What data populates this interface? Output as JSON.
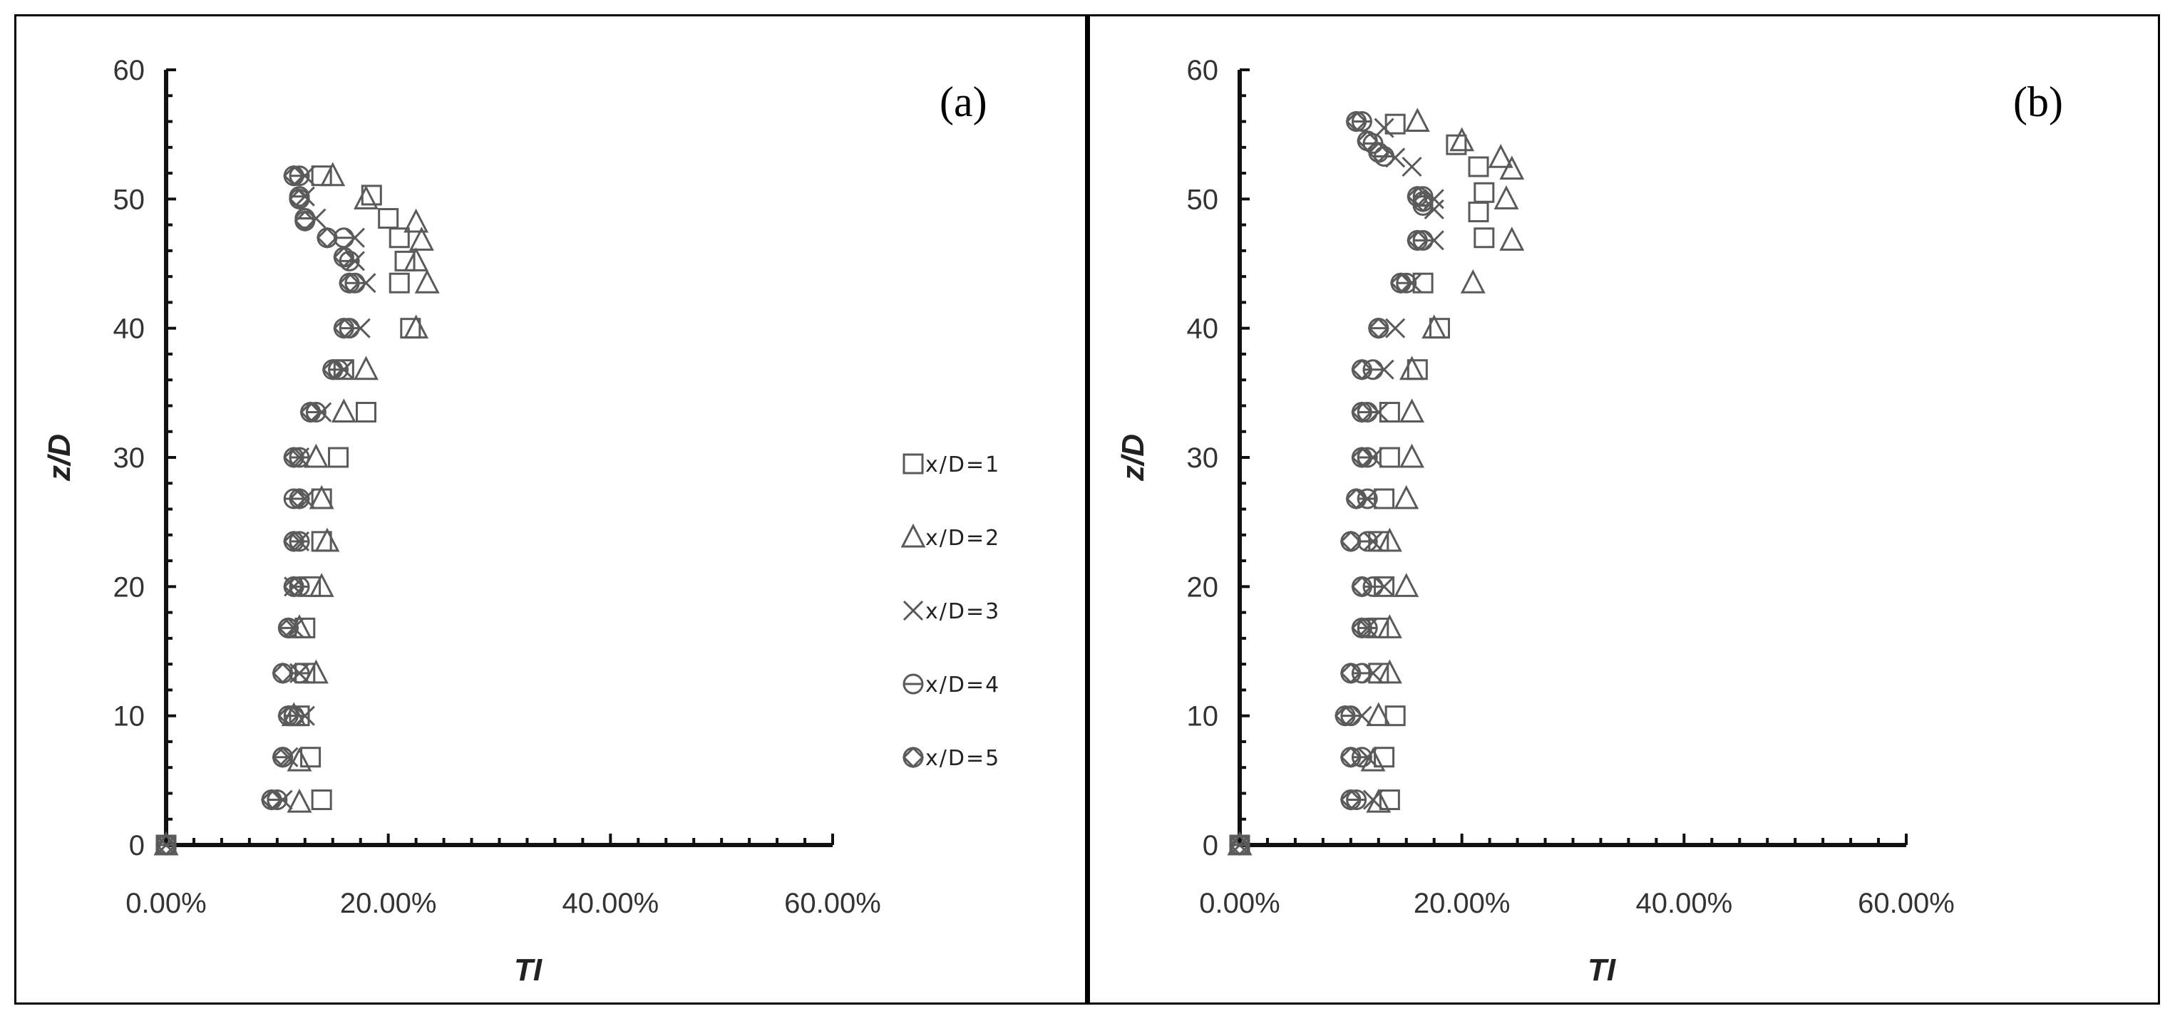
{
  "chart_data": [
    {
      "type": "scatter",
      "panel_label": "(a)",
      "xlabel": "TI",
      "ylabel": "z/D",
      "xlim": [
        0,
        0.6
      ],
      "ylim": [
        0,
        60
      ],
      "x_tick_labels": [
        "0.00%",
        "20.00%",
        "40.00%",
        "60.00%"
      ],
      "x_tick_values": [
        0,
        0.2,
        0.4,
        0.6
      ],
      "y_tick_labels": [
        "0",
        "10",
        "20",
        "30",
        "40",
        "50",
        "60"
      ],
      "y_tick_values": [
        0,
        10,
        20,
        30,
        40,
        50,
        60
      ],
      "legend_position": "right",
      "series": [
        {
          "name": "x/D=1",
          "marker": "square",
          "points": [
            [
              0,
              0
            ],
            [
              0.14,
              3.5
            ],
            [
              0.13,
              6.8
            ],
            [
              0.12,
              10
            ],
            [
              0.125,
              13.3
            ],
            [
              0.125,
              16.8
            ],
            [
              0.13,
              20
            ],
            [
              0.14,
              23.5
            ],
            [
              0.14,
              26.8
            ],
            [
              0.155,
              30
            ],
            [
              0.18,
              33.5
            ],
            [
              0.16,
              36.8
            ],
            [
              0.22,
              40
            ],
            [
              0.21,
              43.5
            ],
            [
              0.215,
              45.2
            ],
            [
              0.21,
              47
            ],
            [
              0.2,
              48.5
            ],
            [
              0.185,
              50.3
            ],
            [
              0.14,
              51.8
            ]
          ]
        },
        {
          "name": "x/D=2",
          "marker": "triangle",
          "points": [
            [
              0,
              0
            ],
            [
              0.12,
              3.3
            ],
            [
              0.12,
              6.5
            ],
            [
              0.115,
              10
            ],
            [
              0.135,
              13.3
            ],
            [
              0.12,
              16.8
            ],
            [
              0.14,
              20
            ],
            [
              0.145,
              23.5
            ],
            [
              0.14,
              26.8
            ],
            [
              0.135,
              30
            ],
            [
              0.16,
              33.5
            ],
            [
              0.18,
              36.8
            ],
            [
              0.225,
              40
            ],
            [
              0.235,
              43.5
            ],
            [
              0.225,
              45.2
            ],
            [
              0.23,
              46.8
            ],
            [
              0.225,
              48.2
            ],
            [
              0.18,
              50
            ],
            [
              0.15,
              51.8
            ]
          ]
        },
        {
          "name": "x/D=3",
          "marker": "x",
          "points": [
            [
              0,
              0
            ],
            [
              0.105,
              3.5
            ],
            [
              0.11,
              6.8
            ],
            [
              0.125,
              10
            ],
            [
              0.12,
              13.3
            ],
            [
              0.115,
              16.8
            ],
            [
              0.115,
              20
            ],
            [
              0.12,
              23.5
            ],
            [
              0.125,
              26.8
            ],
            [
              0.12,
              30
            ],
            [
              0.14,
              33.5
            ],
            [
              0.16,
              36.8
            ],
            [
              0.175,
              40
            ],
            [
              0.18,
              43.5
            ],
            [
              0.17,
              45.2
            ],
            [
              0.17,
              47
            ],
            [
              0.135,
              48.5
            ],
            [
              0.125,
              50.2
            ],
            [
              0.125,
              51.8
            ]
          ]
        },
        {
          "name": "x/D=4",
          "marker": "circle-cross",
          "points": [
            [
              0,
              0
            ],
            [
              0.1,
              3.5
            ],
            [
              0.105,
              6.8
            ],
            [
              0.115,
              10
            ],
            [
              0.12,
              13.3
            ],
            [
              0.11,
              16.8
            ],
            [
              0.12,
              20
            ],
            [
              0.12,
              23.5
            ],
            [
              0.115,
              26.8
            ],
            [
              0.12,
              30
            ],
            [
              0.135,
              33.5
            ],
            [
              0.155,
              36.8
            ],
            [
              0.165,
              40
            ],
            [
              0.17,
              43.5
            ],
            [
              0.165,
              45.2
            ],
            [
              0.16,
              47
            ],
            [
              0.125,
              48.5
            ],
            [
              0.12,
              50.2
            ],
            [
              0.12,
              51.8
            ]
          ]
        },
        {
          "name": "x/D=5",
          "marker": "diamond-circle",
          "points": [
            [
              0,
              0
            ],
            [
              0.095,
              3.5
            ],
            [
              0.105,
              6.8
            ],
            [
              0.11,
              10
            ],
            [
              0.105,
              13.3
            ],
            [
              0.11,
              16.8
            ],
            [
              0.115,
              20
            ],
            [
              0.115,
              23.5
            ],
            [
              0.12,
              26.8
            ],
            [
              0.115,
              30
            ],
            [
              0.13,
              33.5
            ],
            [
              0.15,
              36.8
            ],
            [
              0.16,
              40
            ],
            [
              0.165,
              43.5
            ],
            [
              0.16,
              45.5
            ],
            [
              0.145,
              47
            ],
            [
              0.125,
              48.3
            ],
            [
              0.12,
              50
            ],
            [
              0.115,
              51.8
            ]
          ]
        }
      ]
    },
    {
      "type": "scatter",
      "panel_label": "(b)",
      "xlabel": "TI",
      "ylabel": "z/D",
      "xlim": [
        0,
        0.6
      ],
      "ylim": [
        0,
        60
      ],
      "x_tick_labels": [
        "0.00%",
        "20.00%",
        "40.00%",
        "60.00%"
      ],
      "x_tick_values": [
        0,
        0.2,
        0.4,
        0.6
      ],
      "y_tick_labels": [
        "0",
        "10",
        "20",
        "30",
        "40",
        "50",
        "60"
      ],
      "y_tick_values": [
        0,
        10,
        20,
        30,
        40,
        50,
        60
      ],
      "series": [
        {
          "name": "x/D=1",
          "marker": "square",
          "points": [
            [
              0,
              0
            ],
            [
              0.135,
              3.5
            ],
            [
              0.13,
              6.8
            ],
            [
              0.14,
              10
            ],
            [
              0.125,
              13.3
            ],
            [
              0.125,
              16.8
            ],
            [
              0.13,
              20
            ],
            [
              0.125,
              23.5
            ],
            [
              0.13,
              26.8
            ],
            [
              0.135,
              30
            ],
            [
              0.135,
              33.5
            ],
            [
              0.16,
              36.8
            ],
            [
              0.18,
              40
            ],
            [
              0.165,
              43.5
            ],
            [
              0.22,
              47
            ],
            [
              0.215,
              49
            ],
            [
              0.22,
              50.5
            ],
            [
              0.215,
              52.5
            ],
            [
              0.195,
              54.2
            ],
            [
              0.14,
              55.8
            ]
          ]
        },
        {
          "name": "x/D=2",
          "marker": "triangle",
          "points": [
            [
              0,
              0
            ],
            [
              0.125,
              3.3
            ],
            [
              0.12,
              6.5
            ],
            [
              0.125,
              10
            ],
            [
              0.135,
              13.3
            ],
            [
              0.135,
              16.8
            ],
            [
              0.15,
              20
            ],
            [
              0.135,
              23.5
            ],
            [
              0.15,
              26.8
            ],
            [
              0.155,
              30
            ],
            [
              0.155,
              33.5
            ],
            [
              0.155,
              36.8
            ],
            [
              0.175,
              40
            ],
            [
              0.21,
              43.5
            ],
            [
              0.245,
              46.8
            ],
            [
              0.24,
              50
            ],
            [
              0.245,
              52.3
            ],
            [
              0.235,
              53.2
            ],
            [
              0.2,
              54.5
            ],
            [
              0.16,
              56
            ]
          ]
        },
        {
          "name": "x/D=3",
          "marker": "x",
          "points": [
            [
              0,
              0
            ],
            [
              0.12,
              3.5
            ],
            [
              0.115,
              6.8
            ],
            [
              0.11,
              10
            ],
            [
              0.12,
              13.3
            ],
            [
              0.115,
              16.8
            ],
            [
              0.13,
              20
            ],
            [
              0.12,
              23.5
            ],
            [
              0.115,
              26.8
            ],
            [
              0.12,
              30
            ],
            [
              0.125,
              33.5
            ],
            [
              0.13,
              36.8
            ],
            [
              0.14,
              40
            ],
            [
              0.155,
              43.5
            ],
            [
              0.175,
              46.8
            ],
            [
              0.175,
              49.2
            ],
            [
              0.175,
              50
            ],
            [
              0.155,
              52.5
            ],
            [
              0.14,
              53.2
            ],
            [
              0.13,
              55.5
            ]
          ]
        },
        {
          "name": "x/D=4",
          "marker": "circle-cross",
          "points": [
            [
              0,
              0
            ],
            [
              0.105,
              3.5
            ],
            [
              0.11,
              6.8
            ],
            [
              0.1,
              10
            ],
            [
              0.11,
              13.3
            ],
            [
              0.115,
              16.8
            ],
            [
              0.12,
              20
            ],
            [
              0.115,
              23.5
            ],
            [
              0.115,
              26.8
            ],
            [
              0.115,
              30
            ],
            [
              0.115,
              33.5
            ],
            [
              0.12,
              36.8
            ],
            [
              0.125,
              40
            ],
            [
              0.15,
              43.5
            ],
            [
              0.165,
              46.8
            ],
            [
              0.165,
              49.5
            ],
            [
              0.165,
              50.2
            ],
            [
              0.13,
              53.3
            ],
            [
              0.12,
              54.3
            ],
            [
              0.11,
              56
            ]
          ]
        },
        {
          "name": "x/D=5",
          "marker": "diamond-circle",
          "points": [
            [
              0,
              0
            ],
            [
              0.1,
              3.5
            ],
            [
              0.1,
              6.8
            ],
            [
              0.095,
              10
            ],
            [
              0.1,
              13.3
            ],
            [
              0.11,
              16.8
            ],
            [
              0.11,
              20
            ],
            [
              0.1,
              23.5
            ],
            [
              0.105,
              26.8
            ],
            [
              0.11,
              30
            ],
            [
              0.11,
              33.5
            ],
            [
              0.11,
              36.8
            ],
            [
              0.125,
              40
            ],
            [
              0.145,
              43.5
            ],
            [
              0.16,
              46.8
            ],
            [
              0.165,
              49.8
            ],
            [
              0.16,
              50.2
            ],
            [
              0.125,
              53.6
            ],
            [
              0.115,
              54.5
            ],
            [
              0.105,
              56
            ]
          ]
        }
      ]
    }
  ],
  "legend": [
    {
      "name": "x/D=1",
      "marker": "square"
    },
    {
      "name": "x/D=2",
      "marker": "triangle"
    },
    {
      "name": "x/D=3",
      "marker": "x"
    },
    {
      "name": "x/D=4",
      "marker": "circle-cross"
    },
    {
      "name": "x/D=5",
      "marker": "diamond-circle"
    }
  ]
}
